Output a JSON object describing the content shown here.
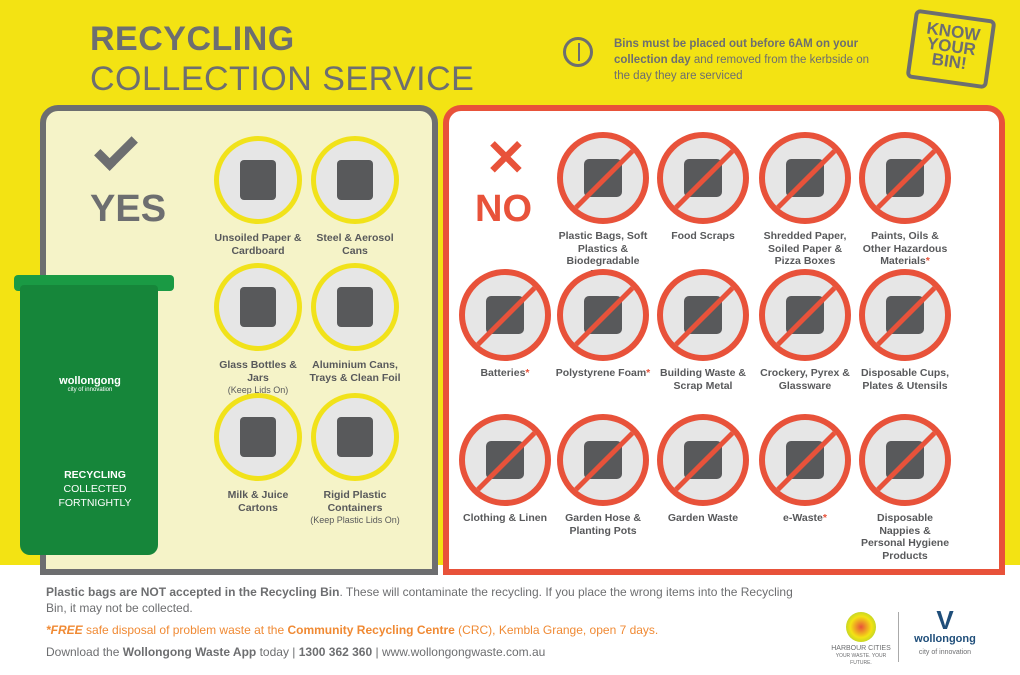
{
  "header": {
    "title_line1": "RECYCLING",
    "title_line2": "COLLECTION SERVICE",
    "notice_bold": "Bins must be placed out before 6AM on your collection day",
    "notice_rest": " and removed from the kerbside on the day they are serviced",
    "badge": "KNOW YOUR BIN!"
  },
  "yes": {
    "label": "YES",
    "items": [
      {
        "label": "Unsoiled Paper & Cardboard",
        "note": ""
      },
      {
        "label": "Steel & Aerosol Cans",
        "note": ""
      },
      {
        "label": "Glass Bottles & Jars",
        "note": "(Keep Lids On)"
      },
      {
        "label": "Aluminium Cans, Trays & Clean Foil",
        "note": ""
      },
      {
        "label": "Milk & Juice Cartons",
        "note": ""
      },
      {
        "label": "Rigid Plastic Containers",
        "note": "(Keep Plastic Lids On)"
      }
    ]
  },
  "bin": {
    "brand": "wollongong",
    "tagline": "city of innovation",
    "line1": "RECYCLING",
    "line2": "COLLECTED FORTNIGHTLY"
  },
  "no": {
    "label": "NO",
    "items": [
      {
        "label": "Plastic Bags, Soft Plastics & Biodegradable Bags",
        "ast": ""
      },
      {
        "label": "Food Scraps",
        "ast": ""
      },
      {
        "label": "Shredded Paper, Soiled Paper & Pizza Boxes",
        "ast": ""
      },
      {
        "label": "Paints, Oils & Other Hazardous Materials",
        "ast": "*"
      },
      {
        "label": "Batteries",
        "ast": "*"
      },
      {
        "label": "Polystyrene Foam",
        "ast": "*"
      },
      {
        "label": "Building Waste & Scrap Metal",
        "ast": ""
      },
      {
        "label": "Crockery, Pyrex & Glassware",
        "ast": ""
      },
      {
        "label": "Disposable Cups, Plates & Utensils",
        "ast": ""
      },
      {
        "label": "Clothing & Linen",
        "ast": ""
      },
      {
        "label": "Garden Hose & Planting Pots",
        "ast": ""
      },
      {
        "label": "Garden Waste",
        "ast": ""
      },
      {
        "label": "e-Waste",
        "ast": "*"
      },
      {
        "label": "Disposable Nappies & Personal Hygiene Products",
        "ast": ""
      }
    ]
  },
  "footer": {
    "l1_bold": "Plastic bags are NOT accepted in the Recycling Bin",
    "l1_rest": ". These will contaminate the recycling. If you place the wrong items into the Recycling Bin, it may not be collected.",
    "l2_free": "*FREE",
    "l2_a": " safe disposal of problem waste at the ",
    "l2_bold": "Community Recycling Centre",
    "l2_b": " (CRC), Kembla Grange, open 7 days.",
    "l3_a": "Download the ",
    "l3_app": "Wollongong Waste App",
    "l3_b": " today | ",
    "l3_phone": "1300 362 360",
    "l3_c": " | www.wollongongwaste.com.au",
    "logo1": "HARBOUR CITIES",
    "logo1_tag": "YOUR WASTE. YOUR FUTURE.",
    "logo2": "wollongong",
    "logo2_tag": "city of innovation"
  },
  "colors": {
    "yellow": "#f3e313",
    "gray": "#6d6e70",
    "red": "#e8523a",
    "green": "#16863a",
    "orange": "#f08a34"
  }
}
